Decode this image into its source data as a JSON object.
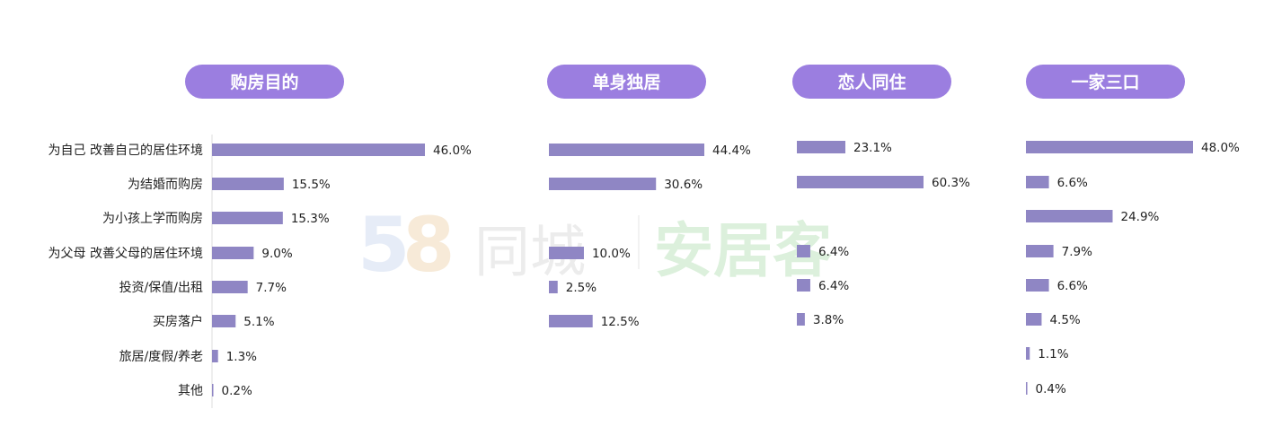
{
  "watermark": {
    "digits_a": "5",
    "digits_b": "8",
    "brand": "同城",
    "product": "安居客"
  },
  "chart_data": [
    {
      "type": "bar",
      "title": "购房目的",
      "categories": [
        "为自己 改善自己的居住环境",
        "为结婚而购房",
        "为小孩上学而购房",
        "为父母 改善父母的居住环境",
        "投资/保值/出租",
        "买房落户",
        "旅居/度假/养老",
        "其他"
      ],
      "values": [
        46.0,
        15.5,
        15.3,
        9.0,
        7.7,
        5.1,
        1.3,
        0.2
      ],
      "value_labels": [
        "46.0%",
        "15.5%",
        "15.3%",
        "9.0%",
        "7.7%",
        "5.1%",
        "1.3%",
        "0.2%"
      ],
      "unit": "%"
    },
    {
      "type": "bar",
      "title": "单身独居",
      "values": [
        44.4,
        30.6,
        10.0,
        2.5,
        12.5
      ],
      "value_labels": [
        "44.4%",
        "30.6%",
        "10.0%",
        "2.5%",
        "12.5%"
      ],
      "unit": "%"
    },
    {
      "type": "bar",
      "title": "恋人同住",
      "values": [
        23.1,
        60.3,
        6.4,
        6.4,
        3.8
      ],
      "value_labels": [
        "23.1%",
        "60.3%",
        "6.4%",
        "6.4%",
        "3.8%"
      ],
      "unit": "%"
    },
    {
      "type": "bar",
      "title": "一家三口",
      "values": [
        48.0,
        6.6,
        24.9,
        7.9,
        6.6,
        4.5,
        1.1,
        0.4
      ],
      "value_labels": [
        "48.0%",
        "6.6%",
        "24.9%",
        "7.9%",
        "6.6%",
        "4.5%",
        "1.1%",
        "0.4%"
      ],
      "unit": "%"
    }
  ],
  "colors": {
    "bar": "#8f86c4",
    "header": "#9b7ee0"
  }
}
